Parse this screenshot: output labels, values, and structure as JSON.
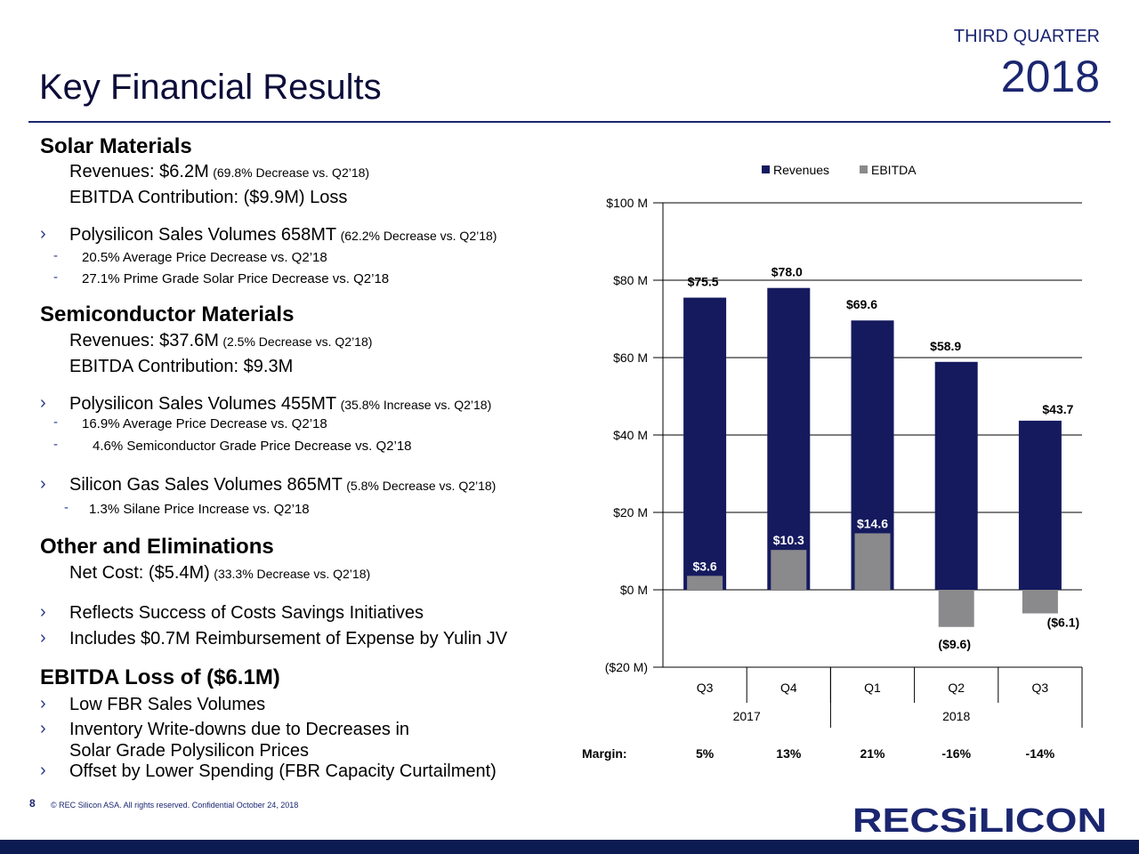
{
  "header": {
    "quarter": "THIRD QUARTER",
    "year": "2018",
    "title": "Key Financial Results"
  },
  "solar": {
    "heading": "Solar Materials",
    "revenues": "Revenues: $6.2M",
    "revenues_note": "(69.8% Decrease vs. Q2’18)",
    "ebitda": "EBITDA Contribution: ($9.9M) Loss",
    "volume": "Polysilicon Sales Volumes 658MT",
    "volume_note": "(62.2% Decrease vs. Q2’18)",
    "sub1": "20.5%  Average Price Decrease vs. Q2’18",
    "sub2": "27.1%  Prime Grade Solar Price Decrease vs. Q2’18"
  },
  "semi": {
    "heading": "Semiconductor Materials",
    "revenues": "Revenues: $37.6M",
    "revenues_note": "(2.5% Decrease vs. Q2’18)",
    "ebitda": "EBITDA Contribution: $9.3M",
    "volume": "Polysilicon Sales Volumes 455MT",
    "volume_note": "(35.8% Increase vs. Q2’18)",
    "sub1": "16.9%   Average Price Decrease vs. Q2’18",
    "sub2": "4.6%   Semiconductor Grade Price Decrease vs. Q2’18",
    "gas": "Silicon Gas Sales Volumes 865MT",
    "gas_note": "(5.8% Decrease vs. Q2’18)",
    "sub3": "1.3%  Silane Price Increase vs. Q2’18"
  },
  "other": {
    "heading": "Other and Eliminations",
    "net": "Net Cost: ($5.4M)",
    "net_note": "(33.3% Decrease vs. Q2’18)",
    "b1": "Reflects Success of Costs Savings Initiatives",
    "b2": "Includes $0.7M Reimbursement of Expense by Yulin JV"
  },
  "ebitda_loss": {
    "heading": "EBITDA Loss of ($6.1M)",
    "b1": "Low FBR Sales Volumes",
    "b2a": "Inventory Write-downs due to Decreases in",
    "b2b": "Solar Grade Polysilicon Prices",
    "b3": "Offset by Lower Spending (FBR Capacity Curtailment)"
  },
  "bullets": {
    "arrow": "›",
    "dash": "-"
  },
  "footer": {
    "page": "8",
    "text": "©  REC Silicon ASA. All rights reserved. Confidential  October 24, 2018",
    "logo": "RECSiLICON"
  },
  "colors": {
    "revenue": "#151a5e",
    "ebitda": "#8a8a8c",
    "brand": "#1b2670"
  },
  "chart_data": {
    "type": "bar",
    "categories": [
      "Q3",
      "Q4",
      "Q1",
      "Q2",
      "Q3"
    ],
    "year_groups": [
      {
        "label": "2017",
        "count": 2
      },
      {
        "label": "2018",
        "count": 3
      }
    ],
    "series": [
      {
        "name": "Revenues",
        "values": [
          75.5,
          78.0,
          69.6,
          58.9,
          43.7
        ],
        "labels": [
          "$75.5",
          "$78.0",
          "$69.6",
          "$58.9",
          "$43.7"
        ]
      },
      {
        "name": "EBITDA",
        "values": [
          3.6,
          10.3,
          14.6,
          -9.6,
          -6.1
        ],
        "labels": [
          "$3.6",
          "$10.3",
          "$14.6",
          "($9.6)",
          "($6.1)"
        ]
      }
    ],
    "ylim": [
      -20,
      100
    ],
    "ytick_values": [
      100,
      80,
      60,
      40,
      20,
      0,
      -20
    ],
    "ytick_labels": [
      "$100 M",
      "$80 M",
      "$60 M",
      "$40 M",
      "$20 M",
      "$0 M",
      "($20 M)"
    ],
    "margin_label": "Margin:",
    "margins": [
      "5%",
      "13%",
      "21%",
      "-16%",
      "-14%"
    ],
    "legend": [
      "Revenues",
      "EBITDA"
    ]
  }
}
